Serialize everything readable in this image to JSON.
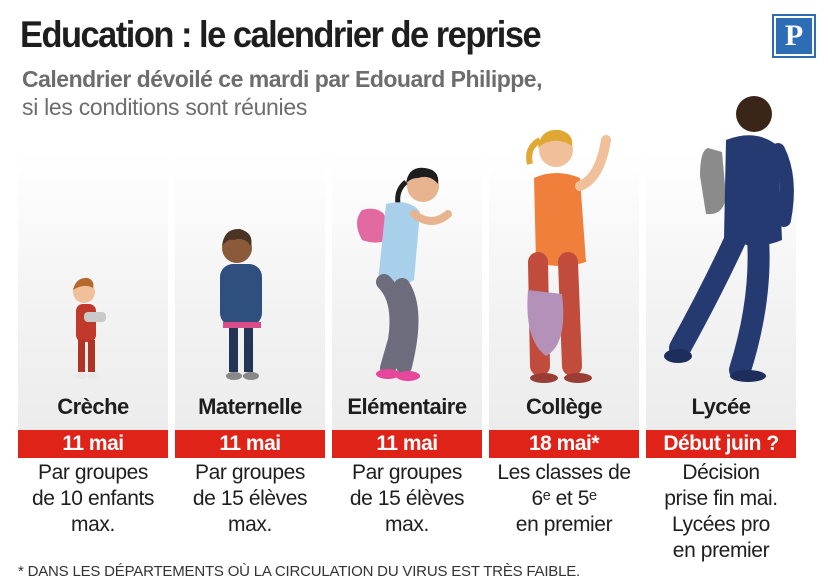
{
  "header": {
    "title": "Education : le calendrier de reprise",
    "subtitle_line1": "Calendrier dévoilé ce mardi par Edouard Philippe,",
    "subtitle_line2": "si les conditions sont réunies",
    "logo_letter": "P",
    "logo_color": "#2d6db6"
  },
  "accent_color": "#e02318",
  "columns": [
    {
      "label": "Crèche",
      "date": "11 mai",
      "note": [
        "Par groupes",
        "de 10 enfants",
        "max."
      ],
      "illustration": "toddler-illustration"
    },
    {
      "label": "Maternelle",
      "date": "11 mai",
      "note": [
        "Par groupes",
        "de 15 élèves",
        "max."
      ],
      "illustration": "preschooler-illustration"
    },
    {
      "label": "Elémentaire",
      "date": "11 mai",
      "note": [
        "Par groupes",
        "de 15 élèves",
        "max."
      ],
      "illustration": "schoolgirl-illustration"
    },
    {
      "label": "Collège",
      "date": "18 mai*",
      "note": [
        "Les classes de",
        "6ᵉ et 5ᵉ",
        "en premier"
      ],
      "illustration": "teen-girl-illustration"
    },
    {
      "label": "Lycée",
      "date": "Début juin ?",
      "note": [
        "Décision",
        "prise fin mai.",
        "Lycées pro",
        "en premier"
      ],
      "illustration": "high-schooler-illustration"
    }
  ],
  "footnote": "* DANS LES DÉPARTEMENTS OÙ LA CIRCULATION DU VIRUS EST TRÈS FAIBLE."
}
